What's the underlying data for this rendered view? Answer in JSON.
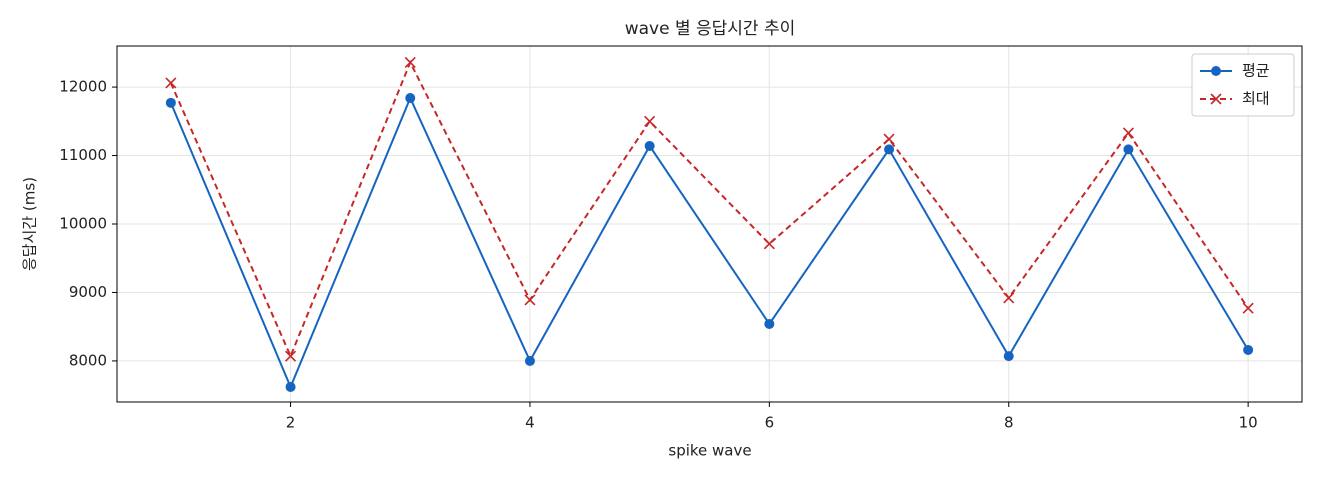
{
  "chart_data": {
    "type": "line",
    "title": "wave 별 응답시간 추이",
    "x_label": "spike wave",
    "y_label": "응답시간 (ms)",
    "x": [
      1,
      2,
      3,
      4,
      5,
      6,
      7,
      8,
      9,
      10
    ],
    "series": [
      {
        "name": "평균",
        "color": "#1565c0",
        "marker": "circle",
        "dash": "solid",
        "values": [
          11770,
          7620,
          11840,
          8000,
          11140,
          8540,
          11090,
          8070,
          11090,
          8160
        ]
      },
      {
        "name": "최대",
        "color": "#c62828",
        "marker": "x",
        "dash": "dashed",
        "values": [
          12060,
          8070,
          12360,
          8890,
          11500,
          9710,
          11240,
          8920,
          11330,
          8770
        ]
      }
    ],
    "xlim": [
      0.55,
      10.45
    ],
    "ylim": [
      7400,
      12600
    ],
    "xticks": [
      2,
      4,
      6,
      8,
      10
    ],
    "yticks": [
      8000,
      9000,
      10000,
      11000,
      12000
    ],
    "grid": true,
    "legend": "upper right"
  }
}
